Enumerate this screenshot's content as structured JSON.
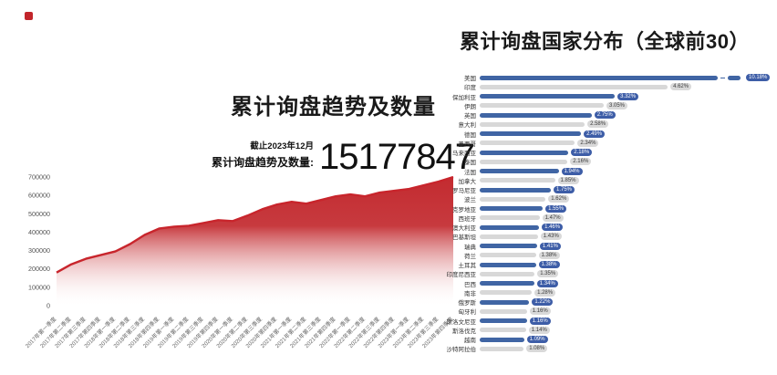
{
  "logo": {
    "color": "#c2252b"
  },
  "colors": {
    "trend_line": "#c8252c",
    "area_top": "#c32b30",
    "bar_blue": "#4065a4",
    "bar_gray": "#d8d8d8",
    "pill_blue": "#3d5da7",
    "pill_gray": "#d9d9d9",
    "tick_text": "#666666"
  },
  "chart_data": [
    {
      "type": "area",
      "title": "累计询盘趋势及数量",
      "as_of": "截止2023年12月",
      "stat_label": "累计询盘趋势及数量:",
      "total": "15177847",
      "xlabel": "",
      "ylabel": "",
      "ylim": [
        0,
        700000
      ],
      "yticks": [
        0,
        100000,
        200000,
        300000,
        400000,
        500000,
        600000,
        700000
      ],
      "grid": false,
      "legend": "none",
      "categories": [
        "2017年第一季度",
        "2017年第二季度",
        "2017年第三季度",
        "2017年第四季度",
        "2018年第一季度",
        "2018年第二季度",
        "2018年第三季度",
        "2018年第四季度",
        "2019年第一季度",
        "2019年第二季度",
        "2019年第三季度",
        "2019年第四季度",
        "2020年第一季度",
        "2020年第二季度",
        "2020年第三季度",
        "2020年第四季度",
        "2021年第一季度",
        "2021年第二季度",
        "2021年第三季度",
        "2021年第四季度",
        "2022年第一季度",
        "2022年第二季度",
        "2022年第三季度",
        "2022年第四季度",
        "2023年第一季度",
        "2023年第二季度",
        "2023年第三季度",
        "2023年第四季度"
      ],
      "values": [
        180000,
        225000,
        255000,
        275000,
        295000,
        335000,
        385000,
        420000,
        430000,
        435000,
        450000,
        465000,
        460000,
        490000,
        525000,
        550000,
        565000,
        555000,
        575000,
        595000,
        605000,
        595000,
        615000,
        625000,
        635000,
        655000,
        675000,
        700000
      ]
    },
    {
      "type": "bar",
      "orientation": "horizontal",
      "title": "累计询盘国家分布（全球前30）",
      "unit": "%",
      "axis_break_on_first_bar": true,
      "categories": [
        "美国",
        "印度",
        "保加利亚",
        "伊朗",
        "英国",
        "意大利",
        "德国",
        "墨西哥",
        "马来西亚",
        "泰国",
        "法国",
        "加拿大",
        "罗马尼亚",
        "波兰",
        "克罗地亚",
        "西班牙",
        "澳大利亚",
        "巴基斯坦",
        "瑞典",
        "荷兰",
        "土耳其",
        "印度尼西亚",
        "巴西",
        "南非",
        "俄罗斯",
        "匈牙利",
        "斯洛文尼亚",
        "斯洛伐克",
        "越南",
        "沙特阿拉伯"
      ],
      "values": [
        10.18,
        4.62,
        3.32,
        3.05,
        2.75,
        2.58,
        2.49,
        2.34,
        2.18,
        2.16,
        1.94,
        1.85,
        1.75,
        1.62,
        1.55,
        1.47,
        1.46,
        1.43,
        1.41,
        1.38,
        1.38,
        1.35,
        1.34,
        1.28,
        1.22,
        1.16,
        1.16,
        1.14,
        1.09,
        1.08
      ]
    }
  ]
}
